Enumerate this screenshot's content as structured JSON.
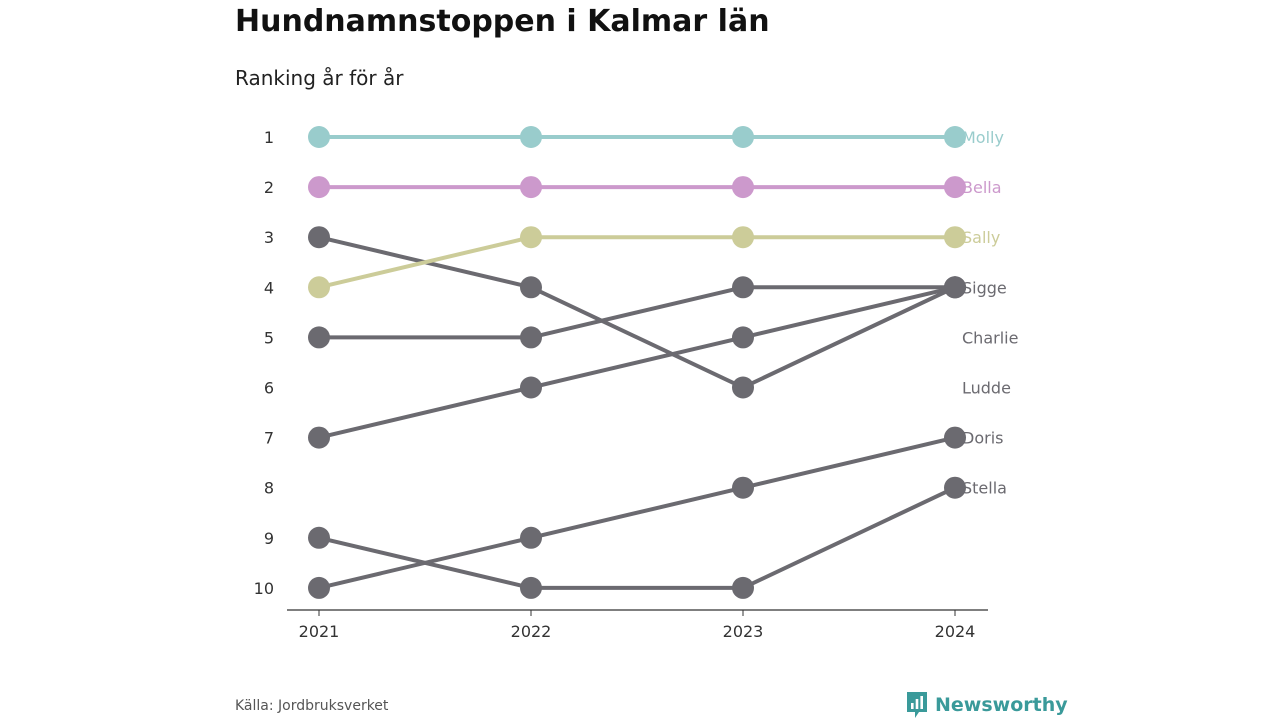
{
  "header": {
    "title": "Hundnamnstoppen i Kalmar län",
    "subtitle": "Ranking år för år"
  },
  "footer": {
    "source": "Källa: Jordbruksverket",
    "brand": "Newsworthy",
    "brand_icon": "newsworthy-logo-icon",
    "brand_color": "#3a9a9a"
  },
  "chart_data": {
    "type": "line",
    "x": [
      "2021",
      "2022",
      "2023",
      "2024"
    ],
    "y_ticks": [
      1,
      2,
      3,
      4,
      5,
      6,
      7,
      8,
      9,
      10
    ],
    "ylim": [
      10,
      1
    ],
    "y_inverted": true,
    "grid": false,
    "legend": "direct labels right of last point",
    "series": [
      {
        "name": "Molly",
        "color": "#99cccc",
        "values": [
          1,
          1,
          1,
          1
        ]
      },
      {
        "name": "Bella",
        "color": "#cc99cc",
        "values": [
          2,
          2,
          2,
          2
        ]
      },
      {
        "name": "Sally",
        "color": "#cccc99",
        "values": [
          4,
          3,
          3,
          3
        ]
      },
      {
        "name": "Sigge",
        "color": "#6b6a70",
        "values": [
          5,
          5,
          4,
          4
        ]
      },
      {
        "name": "Charlie",
        "color": "#6b6a70",
        "values": [
          7,
          6,
          5,
          4
        ]
      },
      {
        "name": "Ludde",
        "color": "#6b6a70",
        "values": [
          3,
          4,
          6,
          4
        ]
      },
      {
        "name": "Doris",
        "color": "#6b6a70",
        "values": [
          10,
          9,
          8,
          7
        ]
      },
      {
        "name": "Stella",
        "color": "#6b6a70",
        "values": [
          9,
          10,
          10,
          8
        ]
      }
    ],
    "end_label_ranks": [
      1,
      2,
      3,
      4,
      5,
      6,
      7,
      8
    ]
  }
}
